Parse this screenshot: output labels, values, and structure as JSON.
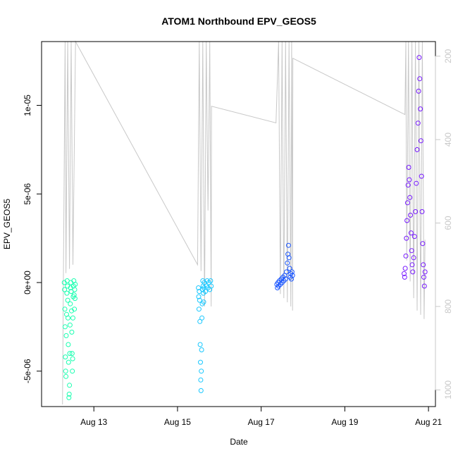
{
  "chart_data": {
    "type": "scatter",
    "title": "ATOM1 Northbound EPV_GEOS5",
    "xlabel": "Date",
    "ylabel": "EPV_GEOS5",
    "xlim": [
      "2016-08-11 18:00",
      "2016-08-21 04:00"
    ],
    "ylim": [
      -7e-06,
      1.36e-05
    ],
    "x_ticks": [
      {
        "date": "2016-08-13",
        "label": "Aug 13"
      },
      {
        "date": "2016-08-15",
        "label": "Aug 15"
      },
      {
        "date": "2016-08-17",
        "label": "Aug 17"
      },
      {
        "date": "2016-08-19",
        "label": "Aug 19"
      },
      {
        "date": "2016-08-21",
        "label": "Aug 21"
      }
    ],
    "y_ticks": [
      {
        "value": -5e-06,
        "label": "-5e-06"
      },
      {
        "value": 0,
        "label": "0e+00"
      },
      {
        "value": 5e-06,
        "label": "5e-06"
      },
      {
        "value": 1e-05,
        "label": "1e-05"
      }
    ],
    "right_axis": {
      "reversed": true,
      "lim": [
        1040,
        165
      ],
      "ticks": [
        200,
        400,
        600,
        800,
        1000
      ]
    },
    "colors": {
      "flight1": "#19ffb0",
      "flight2": "#19c8ff",
      "flight3": "#1955ff",
      "flight4": "#7719ff",
      "pressure_trace": "#c8c8c8"
    },
    "series": [
      {
        "color_key": "flight1",
        "points": [
          [
            "2016-08-12 07:00",
            0.0
          ],
          [
            "2016-08-12 07:10",
            -4e-07
          ],
          [
            "2016-08-12 07:20",
            -1.5e-06
          ],
          [
            "2016-08-12 07:30",
            -2.5e-06
          ],
          [
            "2016-08-12 07:40",
            -4.2e-06
          ],
          [
            "2016-08-12 07:50",
            -5e-06
          ],
          [
            "2016-08-12 08:00",
            -5.3e-06
          ],
          [
            "2016-08-12 08:10",
            -3e-06
          ],
          [
            "2016-08-12 08:20",
            -1.8e-06
          ],
          [
            "2016-08-12 08:30",
            -6e-07
          ],
          [
            "2016-08-12 08:40",
            1e-07
          ],
          [
            "2016-08-12 08:50",
            -2e-07
          ],
          [
            "2016-08-12 09:00",
            -1e-06
          ],
          [
            "2016-08-12 09:10",
            -2e-06
          ],
          [
            "2016-08-12 09:20",
            -3.5e-06
          ],
          [
            "2016-08-12 09:30",
            -4.5e-06
          ],
          [
            "2016-08-12 09:40",
            -6.5e-06
          ],
          [
            "2016-08-12 09:50",
            -6.3e-06
          ],
          [
            "2016-08-12 10:00",
            -5.8e-06
          ],
          [
            "2016-08-12 10:10",
            -4e-06
          ],
          [
            "2016-08-12 10:20",
            -2.4e-06
          ],
          [
            "2016-08-12 10:30",
            -1.2e-06
          ],
          [
            "2016-08-12 10:40",
            -3e-07
          ],
          [
            "2016-08-12 10:50",
            0.0
          ],
          [
            "2016-08-12 11:00",
            -5e-07
          ],
          [
            "2016-08-12 11:10",
            -1.6e-06
          ],
          [
            "2016-08-12 11:20",
            -2.8e-06
          ],
          [
            "2016-08-12 11:30",
            -4e-06
          ],
          [
            "2016-08-12 11:40",
            -5e-06
          ],
          [
            "2016-08-12 11:50",
            -4.3e-06
          ],
          [
            "2016-08-12 12:00",
            -2e-06
          ],
          [
            "2016-08-12 12:10",
            -8e-07
          ],
          [
            "2016-08-12 12:20",
            -2e-07
          ],
          [
            "2016-08-12 12:30",
            1e-07
          ],
          [
            "2016-08-12 12:40",
            -7e-07
          ],
          [
            "2016-08-12 12:50",
            -1.5e-06
          ],
          [
            "2016-08-12 13:00",
            -4e-07
          ],
          [
            "2016-08-12 13:10",
            -9e-07
          ],
          [
            "2016-08-12 13:20",
            -1e-07
          ]
        ]
      },
      {
        "color_key": "flight2",
        "points": [
          [
            "2016-08-15 12:00",
            -3e-07
          ],
          [
            "2016-08-15 12:10",
            -8e-07
          ],
          [
            "2016-08-15 12:20",
            -1.5e-06
          ],
          [
            "2016-08-15 12:30",
            -5e-07
          ],
          [
            "2016-08-15 12:40",
            -1e-06
          ],
          [
            "2016-08-15 12:50",
            -2.2e-06
          ],
          [
            "2016-08-15 13:00",
            -3.5e-06
          ],
          [
            "2016-08-15 13:10",
            -4.5e-06
          ],
          [
            "2016-08-15 13:20",
            -5.5e-06
          ],
          [
            "2016-08-15 13:30",
            -6.1e-06
          ],
          [
            "2016-08-15 13:40",
            -5e-06
          ],
          [
            "2016-08-15 13:50",
            -3.8e-06
          ],
          [
            "2016-08-15 14:00",
            -2e-06
          ],
          [
            "2016-08-15 14:10",
            -1.2e-06
          ],
          [
            "2016-08-15 14:20",
            -4e-07
          ],
          [
            "2016-08-15 14:30",
            1e-07
          ],
          [
            "2016-08-15 14:40",
            -2e-07
          ],
          [
            "2016-08-15 14:50",
            -6e-07
          ],
          [
            "2016-08-15 15:00",
            -1.1e-06
          ],
          [
            "2016-08-15 15:10",
            -3e-07
          ],
          [
            "2016-08-15 15:20",
            0.0
          ],
          [
            "2016-08-15 16:00",
            -5e-07
          ],
          [
            "2016-08-15 16:30",
            -2e-07
          ],
          [
            "2016-08-15 17:00",
            1e-07
          ],
          [
            "2016-08-15 17:30",
            -3e-07
          ],
          [
            "2016-08-15 18:00",
            0.0
          ],
          [
            "2016-08-15 18:30",
            -4e-07
          ],
          [
            "2016-08-15 19:00",
            1e-07
          ],
          [
            "2016-08-15 19:20",
            -2e-07
          ]
        ]
      },
      {
        "color_key": "flight3",
        "points": [
          [
            "2016-08-17 09:00",
            -1e-07
          ],
          [
            "2016-08-17 09:20",
            -3e-07
          ],
          [
            "2016-08-17 09:40",
            0.0
          ],
          [
            "2016-08-17 10:00",
            -2e-07
          ],
          [
            "2016-08-17 10:30",
            1e-07
          ],
          [
            "2016-08-17 11:00",
            -1e-07
          ],
          [
            "2016-08-17 11:30",
            2e-07
          ],
          [
            "2016-08-17 12:00",
            0.0
          ],
          [
            "2016-08-17 12:30",
            3e-07
          ],
          [
            "2016-08-17 13:00",
            1e-07
          ],
          [
            "2016-08-17 13:30",
            4e-07
          ],
          [
            "2016-08-17 14:00",
            2e-07
          ],
          [
            "2016-08-17 14:30",
            6e-07
          ],
          [
            "2016-08-17 15:00",
            1.1e-06
          ],
          [
            "2016-08-17 15:20",
            1.6e-06
          ],
          [
            "2016-08-17 15:40",
            2.1e-06
          ],
          [
            "2016-08-17 16:00",
            1.4e-06
          ],
          [
            "2016-08-17 16:20",
            8e-07
          ],
          [
            "2016-08-17 16:40",
            3e-07
          ],
          [
            "2016-08-17 17:00",
            5e-07
          ],
          [
            "2016-08-17 17:20",
            2e-07
          ],
          [
            "2016-08-17 17:40",
            6e-07
          ],
          [
            "2016-08-17 18:00",
            4e-07
          ]
        ]
      },
      {
        "color_key": "flight4",
        "points": [
          [
            "2016-08-20 10:00",
            5e-07
          ],
          [
            "2016-08-20 10:20",
            3e-07
          ],
          [
            "2016-08-20 10:40",
            8e-07
          ],
          [
            "2016-08-20 11:00",
            1.5e-06
          ],
          [
            "2016-08-20 11:20",
            2.5e-06
          ],
          [
            "2016-08-20 11:40",
            3.5e-06
          ],
          [
            "2016-08-20 12:00",
            4.5e-06
          ],
          [
            "2016-08-20 12:20",
            5.5e-06
          ],
          [
            "2016-08-20 12:40",
            6.5e-06
          ],
          [
            "2016-08-20 13:00",
            5.8e-06
          ],
          [
            "2016-08-20 13:20",
            4.8e-06
          ],
          [
            "2016-08-20 13:40",
            3.8e-06
          ],
          [
            "2016-08-20 14:00",
            2.8e-06
          ],
          [
            "2016-08-20 14:20",
            1.8e-06
          ],
          [
            "2016-08-20 14:40",
            1e-06
          ],
          [
            "2016-08-20 15:00",
            6e-07
          ],
          [
            "2016-08-20 15:30",
            1.4e-06
          ],
          [
            "2016-08-20 16:00",
            2.6e-06
          ],
          [
            "2016-08-20 16:30",
            4e-06
          ],
          [
            "2016-08-20 17:00",
            5.6e-06
          ],
          [
            "2016-08-20 17:30",
            7.5e-06
          ],
          [
            "2016-08-20 18:00",
            9e-06
          ],
          [
            "2016-08-20 18:20",
            1.08e-05
          ],
          [
            "2016-08-20 18:40",
            1.27e-05
          ],
          [
            "2016-08-20 19:00",
            1.15e-05
          ],
          [
            "2016-08-20 19:20",
            9.8e-06
          ],
          [
            "2016-08-20 19:40",
            8e-06
          ],
          [
            "2016-08-20 20:00",
            6e-06
          ],
          [
            "2016-08-20 20:20",
            4e-06
          ],
          [
            "2016-08-20 20:40",
            2.2e-06
          ],
          [
            "2016-08-20 21:00",
            1e-06
          ],
          [
            "2016-08-20 21:20",
            3e-07
          ],
          [
            "2016-08-20 21:40",
            -2e-07
          ],
          [
            "2016-08-20 22:00",
            6e-07
          ]
        ]
      }
    ],
    "pressure_trace": [
      [
        "2016-08-12 06:00",
        1035
      ],
      [
        "2016-08-12 07:30",
        165
      ],
      [
        "2016-08-12 08:00",
        720
      ],
      [
        "2016-08-12 09:00",
        165
      ],
      [
        "2016-08-12 10:00",
        710
      ],
      [
        "2016-08-12 11:00",
        165
      ],
      [
        "2016-08-12 12:00",
        700
      ],
      [
        "2016-08-12 13:30",
        165
      ],
      [
        "2016-08-15 11:30",
        700
      ],
      [
        "2016-08-15 12:30",
        165
      ],
      [
        "2016-08-15 13:30",
        715
      ],
      [
        "2016-08-15 14:30",
        165
      ],
      [
        "2016-08-15 15:30",
        800
      ],
      [
        "2016-08-15 16:30",
        165
      ],
      [
        "2016-08-15 17:30",
        570
      ],
      [
        "2016-08-15 18:30",
        165
      ],
      [
        "2016-08-15 19:20",
        800
      ],
      [
        "2016-08-15 19:30",
        320
      ],
      [
        "2016-08-17 08:30",
        360
      ],
      [
        "2016-08-17 10:00",
        165
      ],
      [
        "2016-08-17 11:00",
        770
      ],
      [
        "2016-08-17 12:00",
        165
      ],
      [
        "2016-08-17 13:00",
        780
      ],
      [
        "2016-08-17 14:00",
        165
      ],
      [
        "2016-08-17 15:00",
        790
      ],
      [
        "2016-08-17 16:00",
        165
      ],
      [
        "2016-08-17 17:00",
        800
      ],
      [
        "2016-08-17 17:30",
        165
      ],
      [
        "2016-08-17 18:00",
        810
      ],
      [
        "2016-08-17 18:10",
        205
      ],
      [
        "2016-08-20 10:30",
        340
      ],
      [
        "2016-08-20 11:00",
        165
      ],
      [
        "2016-08-20 11:30",
        690
      ],
      [
        "2016-08-20 12:30",
        165
      ],
      [
        "2016-08-20 13:30",
        740
      ],
      [
        "2016-08-20 14:30",
        165
      ],
      [
        "2016-08-20 15:30",
        780
      ],
      [
        "2016-08-20 16:30",
        165
      ],
      [
        "2016-08-20 17:30",
        810
      ],
      [
        "2016-08-20 18:30",
        165
      ],
      [
        "2016-08-20 19:30",
        820
      ],
      [
        "2016-08-20 20:30",
        165
      ],
      [
        "2016-08-20 21:30",
        830
      ],
      [
        "2016-08-20 22:00",
        640
      ]
    ]
  }
}
